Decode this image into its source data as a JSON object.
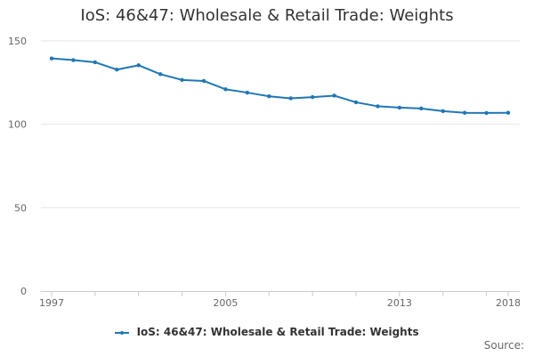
{
  "chart_data": {
    "type": "line",
    "title": "IoS: 46&47: Wholesale & Retail Trade: Weights",
    "xlabel": "",
    "ylabel": "",
    "x": [
      1997,
      1998,
      1999,
      2000,
      2001,
      2002,
      2003,
      2004,
      2005,
      2006,
      2007,
      2008,
      2009,
      2010,
      2011,
      2012,
      2013,
      2014,
      2015,
      2016,
      2017,
      2018
    ],
    "x_tick_labels": [
      "1997",
      "2005",
      "2013",
      "2018"
    ],
    "x_tick_values": [
      1997,
      2005,
      2013,
      2018
    ],
    "ylim": [
      0,
      150
    ],
    "y_ticks": [
      0,
      50,
      100,
      150
    ],
    "grid": true,
    "legend_position": "bottom",
    "series": [
      {
        "name": "IoS: 46&47: Wholesale & Retail Trade: Weights",
        "color": "#1f77b4",
        "values": [
          139.5,
          138.5,
          137.2,
          132.8,
          135.4,
          130.1,
          126.6,
          126.0,
          121.0,
          119.0,
          116.8,
          115.6,
          116.3,
          117.2,
          113.2,
          110.8,
          110.0,
          109.5,
          107.9,
          106.9,
          106.8,
          106.9
        ]
      }
    ]
  },
  "legend": {
    "label": "IoS: 46&47: Wholesale & Retail Trade: Weights"
  },
  "footer": {
    "source_label": "Source:"
  }
}
